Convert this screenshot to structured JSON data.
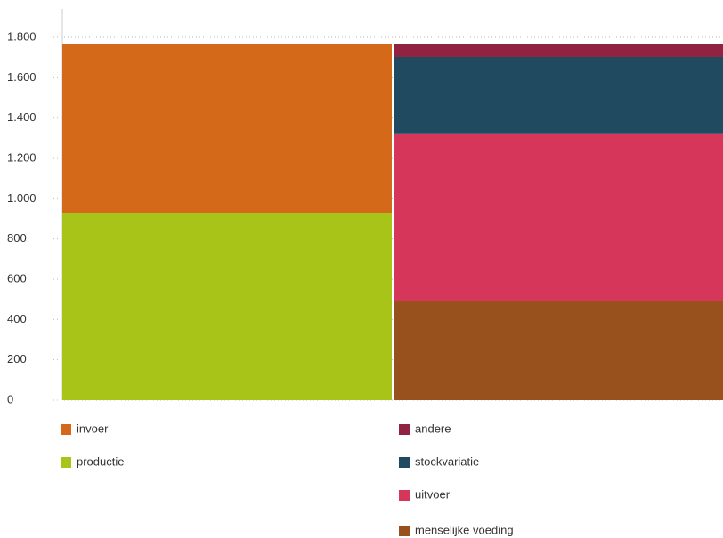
{
  "chart_data": {
    "type": "bar",
    "stacked": true,
    "categories": [
      null,
      null
    ],
    "series": [
      {
        "name": "invoer",
        "color": "#d5691a",
        "values": [
          835,
          null
        ]
      },
      {
        "name": "productie",
        "color": "#a8c418",
        "values": [
          930,
          null
        ]
      },
      {
        "name": "andere",
        "color": "#8f2341",
        "values": [
          null,
          62
        ]
      },
      {
        "name": "stockvariatie",
        "color": "#1f4a60",
        "values": [
          null,
          383
        ]
      },
      {
        "name": "uitvoer",
        "color": "#d5365a",
        "values": [
          null,
          830
        ]
      },
      {
        "name": "menselijke voeding",
        "color": "#98501d",
        "values": [
          null,
          490
        ]
      }
    ],
    "ylim": [
      0,
      1800
    ],
    "yticks": [
      0,
      200,
      400,
      600,
      800,
      {
        "value": 1000,
        "label": "1.000"
      },
      {
        "value": 1200,
        "label": "1.200"
      },
      {
        "value": 1400,
        "label": "1.400"
      },
      {
        "value": 1600,
        "label": "1.600"
      },
      {
        "value": 1800,
        "label": "1.800"
      }
    ],
    "grid": true
  }
}
